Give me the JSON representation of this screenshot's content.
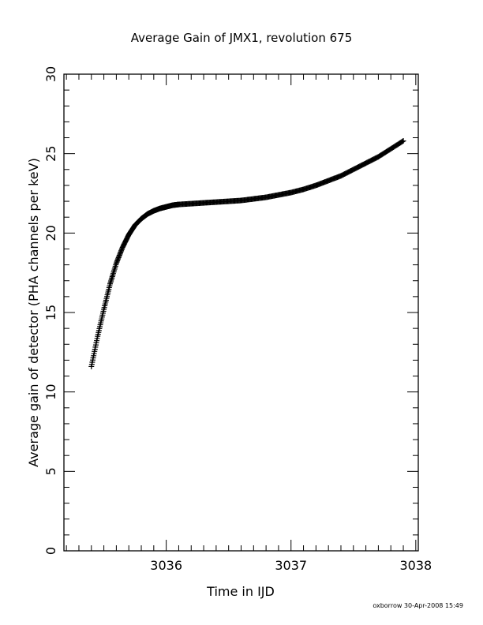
{
  "chart_data": {
    "type": "scatter",
    "title": "Average Gain of JMX1, revolution 675",
    "xlabel": "Time in IJD",
    "ylabel": "Average gain of detector (PHA channels per keV)",
    "xlim": [
      3035.18,
      3038.02
    ],
    "ylim": [
      0,
      30
    ],
    "x_ticks": [
      "3036",
      "3037",
      "3038"
    ],
    "y_ticks": [
      "0",
      "5",
      "10",
      "15",
      "20",
      "25",
      "30"
    ],
    "marker": "+",
    "color": "#000000",
    "grid": false,
    "series": [
      {
        "x": [
          3035.4,
          3035.45,
          3035.5,
          3035.55,
          3035.6,
          3035.65,
          3035.7,
          3035.75,
          3035.8,
          3035.85,
          3035.9,
          3035.95,
          3036.0,
          3036.05,
          3036.1,
          3036.2,
          3036.3,
          3036.4,
          3036.5,
          3036.6,
          3036.7,
          3036.8,
          3036.9,
          3037.0,
          3037.1,
          3037.2,
          3037.3,
          3037.4,
          3037.5,
          3037.6,
          3037.7,
          3037.8,
          3037.9
        ],
        "y": [
          11.6,
          13.5,
          15.2,
          16.8,
          18.1,
          19.1,
          19.9,
          20.5,
          20.9,
          21.2,
          21.4,
          21.55,
          21.65,
          21.75,
          21.8,
          21.85,
          21.9,
          21.95,
          22.0,
          22.05,
          22.15,
          22.25,
          22.4,
          22.55,
          22.75,
          23.0,
          23.3,
          23.6,
          24.0,
          24.4,
          24.8,
          25.3,
          25.8
        ]
      }
    ]
  },
  "footer": "oxborrow 30-Apr-2008 15:49"
}
